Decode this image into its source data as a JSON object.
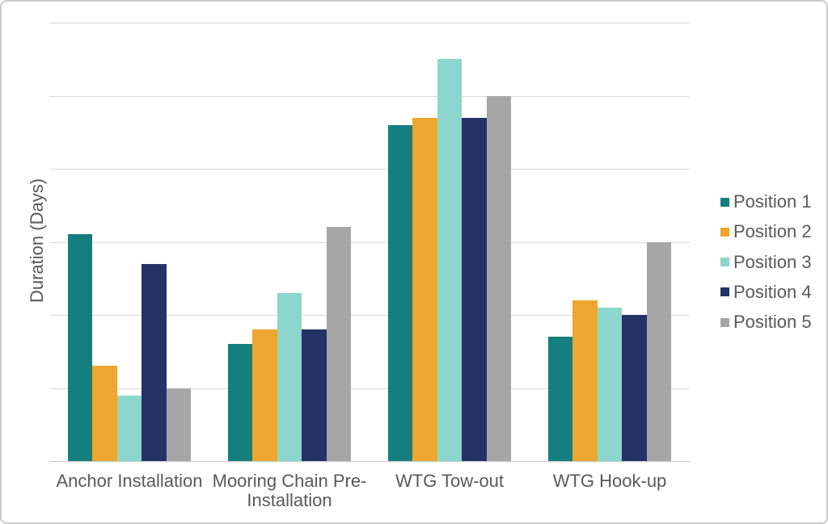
{
  "frame": {
    "background": "#ffffff",
    "border_color": "#cdcdcd"
  },
  "chart_data": {
    "type": "bar",
    "title": "",
    "xlabel": "",
    "ylabel": "Duration (Days)",
    "categories": [
      "Anchor Installation",
      "Mooring Chain Pre-Installation",
      "WTG Tow-out",
      "WTG Hook-up"
    ],
    "series": [
      {
        "name": "Position 1",
        "color": "#157E7F",
        "values": [
          3.1,
          1.6,
          4.6,
          1.7
        ]
      },
      {
        "name": "Position 2",
        "color": "#EDA62F",
        "values": [
          1.3,
          1.8,
          4.7,
          2.2
        ]
      },
      {
        "name": "Position 3",
        "color": "#8CD6CE",
        "values": [
          0.9,
          2.3,
          5.5,
          2.1
        ]
      },
      {
        "name": "Position 4",
        "color": "#233366",
        "values": [
          2.7,
          1.8,
          4.7,
          2.0
        ]
      },
      {
        "name": "Position 5",
        "color": "#A6A6A6",
        "values": [
          1.0,
          3.2,
          5.0,
          3.0
        ]
      }
    ],
    "ylim": [
      0,
      6
    ],
    "gridline_step": 1,
    "y_tick_labels_visible": false,
    "grid": "horizontal",
    "legend_position": "right",
    "text_color": "#595959",
    "gridline_color": "#d9d9d9",
    "axis_line_color": "#c6c6c6"
  }
}
